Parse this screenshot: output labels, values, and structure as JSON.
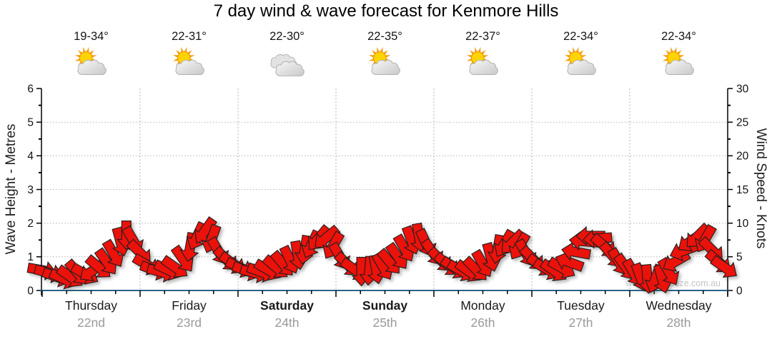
{
  "title": "7 day wind & wave forecast for Kenmore Hills",
  "watermark": "www.seabreeze.com.au",
  "axes": {
    "left": {
      "label": "Wave Height - Metres",
      "ticks": [
        0,
        1,
        2,
        3,
        4,
        5,
        6
      ]
    },
    "right": {
      "label": "Wind Speed - Knots",
      "ticks": [
        0,
        5,
        10,
        15,
        20,
        25,
        30
      ]
    }
  },
  "days": [
    {
      "name": "Thursday",
      "date": "22nd",
      "temp": "19-34°",
      "icon": "sun-cloud",
      "weekend": false
    },
    {
      "name": "Friday",
      "date": "23rd",
      "temp": "22-31°",
      "icon": "sun-cloud",
      "weekend": false
    },
    {
      "name": "Saturday",
      "date": "24th",
      "temp": "22-30°",
      "icon": "clouds",
      "weekend": true
    },
    {
      "name": "Sunday",
      "date": "25th",
      "temp": "22-35°",
      "icon": "sun-cloud",
      "weekend": true
    },
    {
      "name": "Monday",
      "date": "26th",
      "temp": "22-37°",
      "icon": "sun-cloud",
      "weekend": false
    },
    {
      "name": "Tuesday",
      "date": "27th",
      "temp": "22-34°",
      "icon": "sun-cloud",
      "weekend": false
    },
    {
      "name": "Wednesday",
      "date": "28th",
      "temp": "22-34°",
      "icon": "sun-cloud",
      "weekend": false
    }
  ],
  "colors": {
    "arrow_red": "#ea120b",
    "arrow_outline": "#1f1f1f",
    "baseline_blue": "#2a6388",
    "grid_gray": "#b3b3b3",
    "axis_black": "#000000",
    "date_gray": "#9a9a9a",
    "watermark_gray": "#c4c4c4",
    "sun_yellow": "#ffd400",
    "sun_orange": "#f7a11b",
    "cloud_light": "#f7f7f7",
    "cloud_dark": "#c9c9c9"
  },
  "chart_data": {
    "type": "wind-barb-series",
    "title": "7 day wind & wave forecast for Kenmore Hills",
    "x_unit": "days from start of Thursday (0-7)",
    "y_left": {
      "label": "Wave Height - Metres",
      "lim": [
        0,
        6
      ]
    },
    "y_right": {
      "label": "Wind Speed - Knots",
      "lim": [
        0,
        30
      ]
    },
    "grid": {
      "horizontal_dotted_at_metres": [
        1,
        2,
        3,
        4,
        5
      ],
      "vertical_dashed_at_day_boundaries": true
    },
    "legend": "none",
    "dir_unit": "degrees clockwise from east; arrow points downwind",
    "points": [
      [
        0.0,
        4.6,
        10
      ],
      [
        0.07,
        4.2,
        15
      ],
      [
        0.15,
        3.6,
        20
      ],
      [
        0.22,
        3.3,
        25
      ],
      [
        0.29,
        3.6,
        35
      ],
      [
        0.36,
        4.2,
        50
      ],
      [
        0.44,
        4.0,
        30
      ],
      [
        0.51,
        4.5,
        145
      ],
      [
        0.58,
        5.0,
        40
      ],
      [
        0.66,
        5.8,
        55
      ],
      [
        0.73,
        7.0,
        60
      ],
      [
        0.8,
        8.8,
        75
      ],
      [
        0.86,
        9.8,
        90
      ],
      [
        0.93,
        9.0,
        60
      ],
      [
        1.0,
        7.2,
        45
      ],
      [
        1.07,
        5.4,
        30
      ],
      [
        1.15,
        4.6,
        20
      ],
      [
        1.22,
        4.3,
        15
      ],
      [
        1.29,
        4.6,
        25
      ],
      [
        1.36,
        5.0,
        35
      ],
      [
        1.44,
        6.2,
        55
      ],
      [
        1.51,
        8.0,
        100
      ],
      [
        1.58,
        9.6,
        115
      ],
      [
        1.66,
        10.4,
        125
      ],
      [
        1.73,
        9.2,
        110
      ],
      [
        1.8,
        7.4,
        60
      ],
      [
        1.88,
        6.2,
        45
      ],
      [
        1.95,
        5.6,
        35
      ],
      [
        2.02,
        5.0,
        25
      ],
      [
        2.09,
        4.5,
        20
      ],
      [
        2.17,
        4.2,
        15
      ],
      [
        2.24,
        4.3,
        20
      ],
      [
        2.31,
        4.6,
        30
      ],
      [
        2.39,
        5.0,
        40
      ],
      [
        2.46,
        5.5,
        50
      ],
      [
        2.53,
        6.1,
        65
      ],
      [
        2.61,
        6.8,
        80
      ],
      [
        2.68,
        7.6,
        100
      ],
      [
        2.75,
        8.4,
        115
      ],
      [
        2.82,
        9.3,
        130
      ],
      [
        2.9,
        9.4,
        140
      ],
      [
        2.97,
        8.2,
        120
      ],
      [
        3.04,
        6.6,
        60
      ],
      [
        3.12,
        5.4,
        45
      ],
      [
        3.19,
        4.7,
        35
      ],
      [
        3.26,
        4.4,
        90
      ],
      [
        3.34,
        4.5,
        95
      ],
      [
        3.41,
        4.7,
        80
      ],
      [
        3.48,
        5.1,
        60
      ],
      [
        3.55,
        5.8,
        50
      ],
      [
        3.63,
        6.6,
        55
      ],
      [
        3.7,
        7.8,
        60
      ],
      [
        3.77,
        9.0,
        70
      ],
      [
        3.85,
        9.4,
        80
      ],
      [
        3.92,
        8.6,
        65
      ],
      [
        3.99,
        7.2,
        55
      ],
      [
        4.07,
        6.1,
        45
      ],
      [
        4.14,
        5.4,
        40
      ],
      [
        4.21,
        4.9,
        35
      ],
      [
        4.28,
        4.5,
        30
      ],
      [
        4.36,
        4.4,
        35
      ],
      [
        4.43,
        4.7,
        45
      ],
      [
        4.5,
        5.5,
        60
      ],
      [
        4.58,
        6.5,
        75
      ],
      [
        4.65,
        7.7,
        100
      ],
      [
        4.72,
        8.5,
        120
      ],
      [
        4.8,
        8.7,
        135
      ],
      [
        4.87,
        8.1,
        120
      ],
      [
        4.94,
        7.1,
        60
      ],
      [
        5.01,
        6.3,
        45
      ],
      [
        5.09,
        5.3,
        35
      ],
      [
        5.16,
        4.7,
        30
      ],
      [
        5.23,
        4.5,
        35
      ],
      [
        5.31,
        4.9,
        30
      ],
      [
        5.38,
        5.8,
        200
      ],
      [
        5.45,
        7.3,
        190
      ],
      [
        5.53,
        8.9,
        185
      ],
      [
        5.6,
        9.7,
        180
      ],
      [
        5.67,
        9.3,
        175
      ],
      [
        5.74,
        8.2,
        40
      ],
      [
        5.82,
        6.8,
        50
      ],
      [
        5.89,
        5.8,
        60
      ],
      [
        5.96,
        5.0,
        55
      ],
      [
        6.04,
        4.2,
        60
      ],
      [
        6.11,
        3.5,
        70
      ],
      [
        6.18,
        2.9,
        85
      ],
      [
        6.26,
        2.3,
        110
      ],
      [
        6.33,
        3.1,
        75
      ],
      [
        6.4,
        4.3,
        60
      ],
      [
        6.47,
        5.9,
        150
      ],
      [
        6.55,
        7.5,
        160
      ],
      [
        6.62,
        8.9,
        145
      ],
      [
        6.69,
        9.6,
        135
      ],
      [
        6.77,
        9.2,
        120
      ],
      [
        6.84,
        7.6,
        45
      ],
      [
        6.91,
        5.8,
        40
      ],
      [
        6.97,
        5.0,
        35
      ]
    ]
  }
}
